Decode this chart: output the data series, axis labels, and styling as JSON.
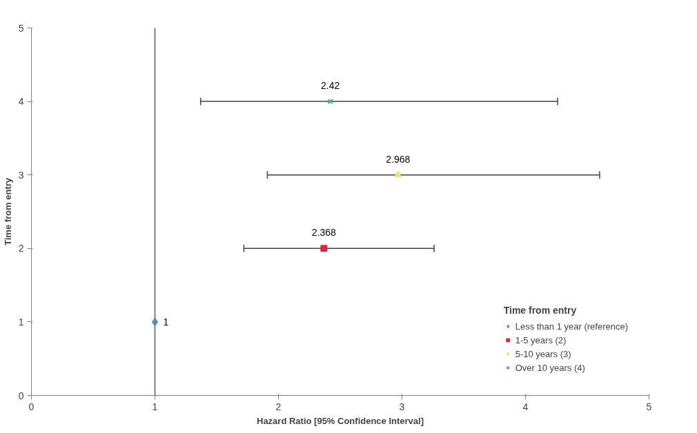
{
  "chart_data": {
    "type": "scatter",
    "xlabel": "Hazard Ratio [95% Confidence Interval]",
    "ylabel": "Time from entry",
    "legend_title": "Time from entry",
    "xlim": [
      0,
      5
    ],
    "xticks": [
      0,
      1,
      2,
      3,
      4,
      5
    ],
    "ylim": [
      0,
      5
    ],
    "yticks": [
      0,
      1,
      2,
      3,
      4,
      5
    ],
    "grid": false,
    "legend": "bottom right",
    "annotations": [
      {
        "text": "1",
        "x": 1,
        "y": 1
      },
      {
        "text": "2.368",
        "x": 2.368,
        "y": 2
      },
      {
        "text": "2.968",
        "x": 2.968,
        "y": 3
      },
      {
        "text": "2.42",
        "x": 2.42,
        "y": 4
      }
    ],
    "ref_lines": [
      {
        "axis": "x",
        "value": 1,
        "color": "#808080"
      }
    ],
    "series": [
      {
        "name": "Less than 1 year (reference)",
        "color": "#4a8fd8",
        "marker": "diamond",
        "x": [
          1
        ],
        "values": [
          1
        ]
      },
      {
        "name": "1-5 years (2)",
        "color": "#d42a3c",
        "marker": "square",
        "x": [
          2.368
        ],
        "values": [
          2
        ],
        "xerrors": [
          [
            1.72,
            3.26
          ]
        ]
      },
      {
        "name": "5-10 years (3)",
        "color": "#f3df7a",
        "marker": "triangle",
        "x": [
          2.968
        ],
        "values": [
          3
        ],
        "xerrors": [
          [
            1.91,
            4.6
          ]
        ]
      },
      {
        "name": "Over 10 years (4)",
        "color": "#3cc06f",
        "marker": "cross",
        "x": [
          2.42
        ],
        "values": [
          4
        ],
        "xerrors": [
          [
            1.37,
            4.26
          ]
        ]
      }
    ]
  }
}
